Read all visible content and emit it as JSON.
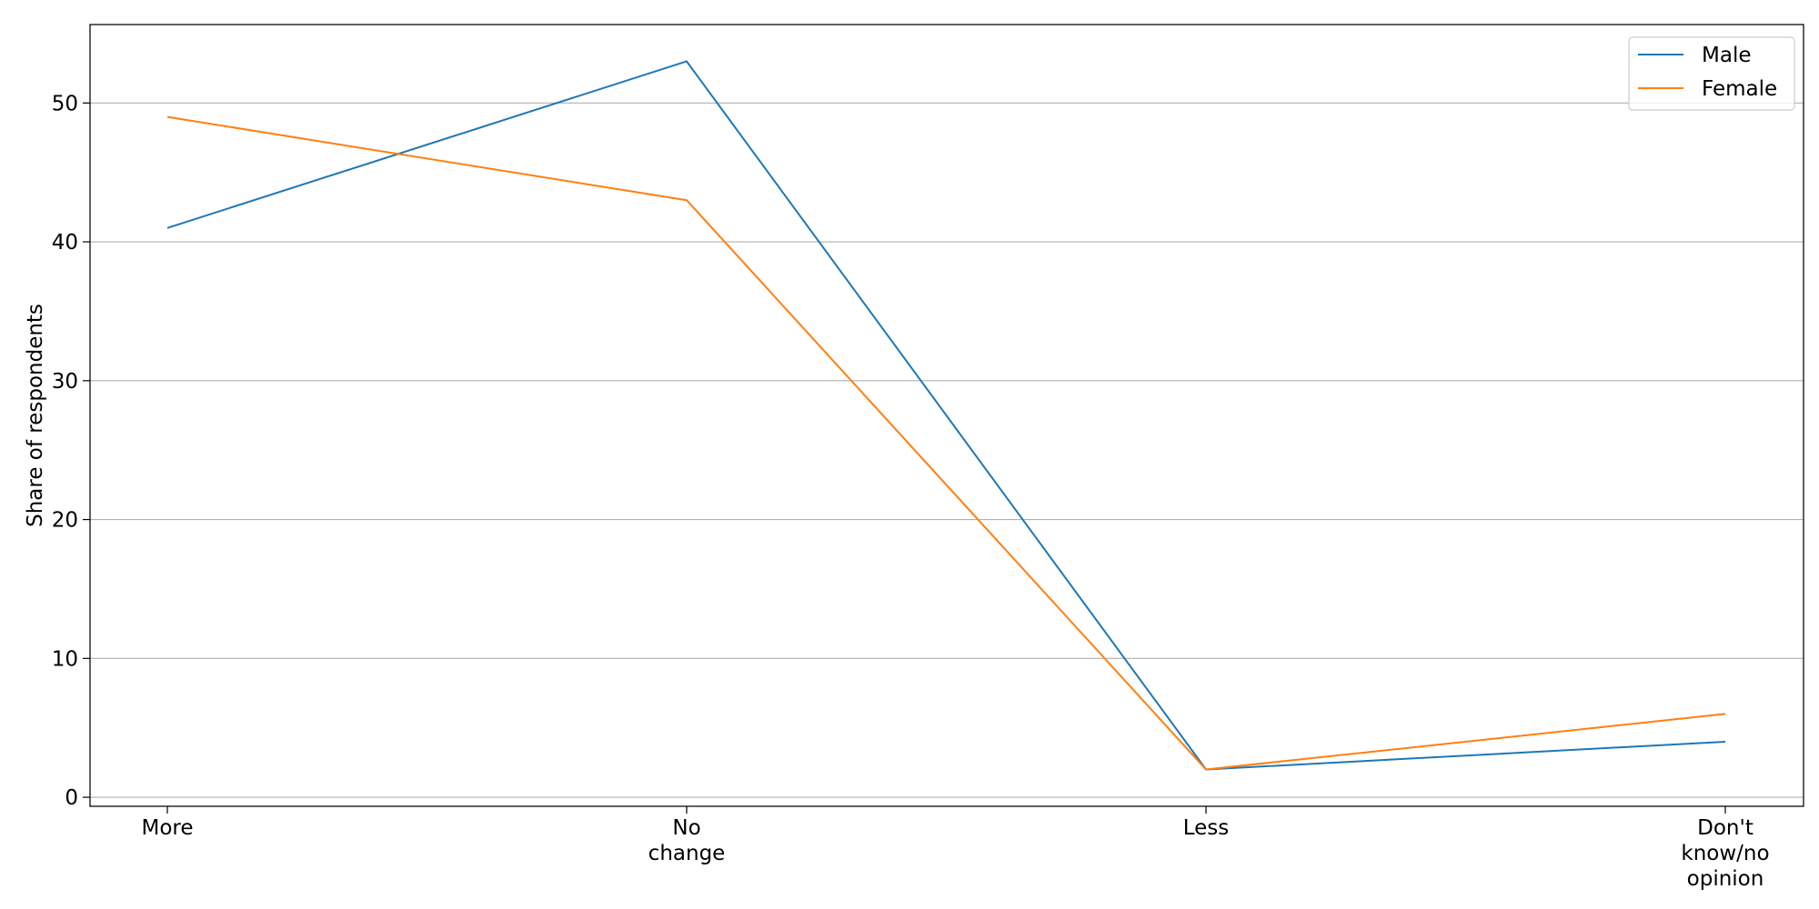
{
  "chart_data": {
    "type": "line",
    "categories": [
      "More",
      "No\nchange",
      "Less",
      "Don't\nknow/no\nopinion"
    ],
    "series": [
      {
        "name": "Male",
        "values": [
          41,
          53,
          2,
          4
        ],
        "color": "#1f77b4"
      },
      {
        "name": "Female",
        "values": [
          49,
          43,
          2,
          6
        ],
        "color": "#ff7f0e"
      }
    ],
    "title": "",
    "xlabel": "",
    "ylabel": "Share of respondents",
    "ylim": [
      -0.65,
      55.65
    ],
    "yticks": [
      0,
      10,
      20,
      30,
      40,
      50
    ],
    "grid": "y",
    "legend": "top-right"
  }
}
